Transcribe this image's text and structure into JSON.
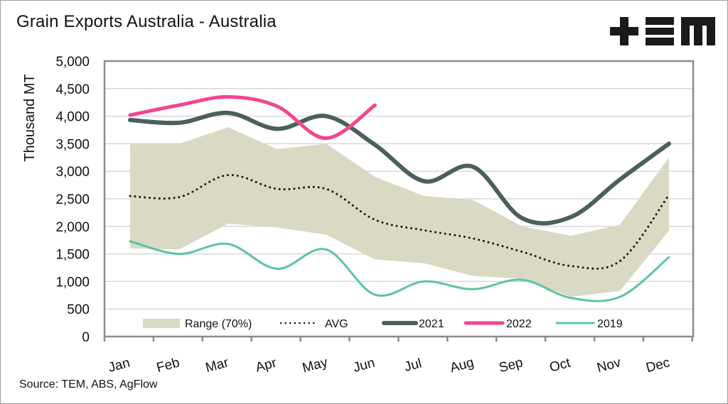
{
  "header": {
    "title": "Grain Exports Australia - Australia",
    "logo_text": "+EM"
  },
  "footer": {
    "source": "Source: TEM, ABS, AgFlow"
  },
  "colors": {
    "range": "#d9d9c4",
    "avg": "#1a1a1a",
    "s2021": "#4a5f5e",
    "s2022": "#f2468f",
    "s2019": "#5bc4a0",
    "grid": "#d8d8d8",
    "axis": "#8c8c8c"
  },
  "chart_data": {
    "type": "line",
    "title": "Grain Exports Australia - Australia",
    "xlabel": "",
    "ylabel": "Thousand MT",
    "ylim": [
      0,
      5000
    ],
    "yticks": [
      0,
      500,
      1000,
      1500,
      2000,
      2500,
      3000,
      3500,
      4000,
      4500,
      5000
    ],
    "ytick_labels": [
      "0",
      "500",
      "1,000",
      "1,500",
      "2,000",
      "2,500",
      "3,000",
      "3,500",
      "4,000",
      "4,500",
      "5,000"
    ],
    "categories": [
      "Jan",
      "Feb",
      "Mar",
      "Apr",
      "May",
      "Jun",
      "Jul",
      "Aug",
      "Sep",
      "Oct",
      "Nov",
      "Dec"
    ],
    "grid": true,
    "legend_position": "bottom-inside",
    "range": {
      "name": "Range (70%)",
      "upper": [
        3500,
        3500,
        3800,
        3400,
        3500,
        2900,
        2550,
        2480,
        2000,
        1830,
        2030,
        3250
      ],
      "lower": [
        1600,
        1580,
        2050,
        1980,
        1850,
        1400,
        1330,
        1100,
        1050,
        720,
        830,
        1920
      ]
    },
    "series": [
      {
        "name": "AVG",
        "style": "dotted",
        "values": [
          2550,
          2530,
          2930,
          2680,
          2680,
          2120,
          1930,
          1780,
          1540,
          1280,
          1370,
          2570
        ]
      },
      {
        "name": "2021",
        "style": "thick",
        "values": [
          3930,
          3880,
          4060,
          3770,
          4000,
          3480,
          2820,
          3080,
          2150,
          2170,
          2850,
          3500
        ]
      },
      {
        "name": "2022",
        "style": "thick",
        "values": [
          4020,
          4200,
          4350,
          4180,
          3600,
          4200
        ]
      },
      {
        "name": "2019",
        "style": "thin",
        "values": [
          1730,
          1500,
          1680,
          1230,
          1580,
          760,
          1000,
          860,
          1030,
          700,
          720,
          1440
        ]
      }
    ],
    "legend": [
      "Range (70%)",
      "AVG",
      "2021",
      "2022",
      "2019"
    ]
  }
}
